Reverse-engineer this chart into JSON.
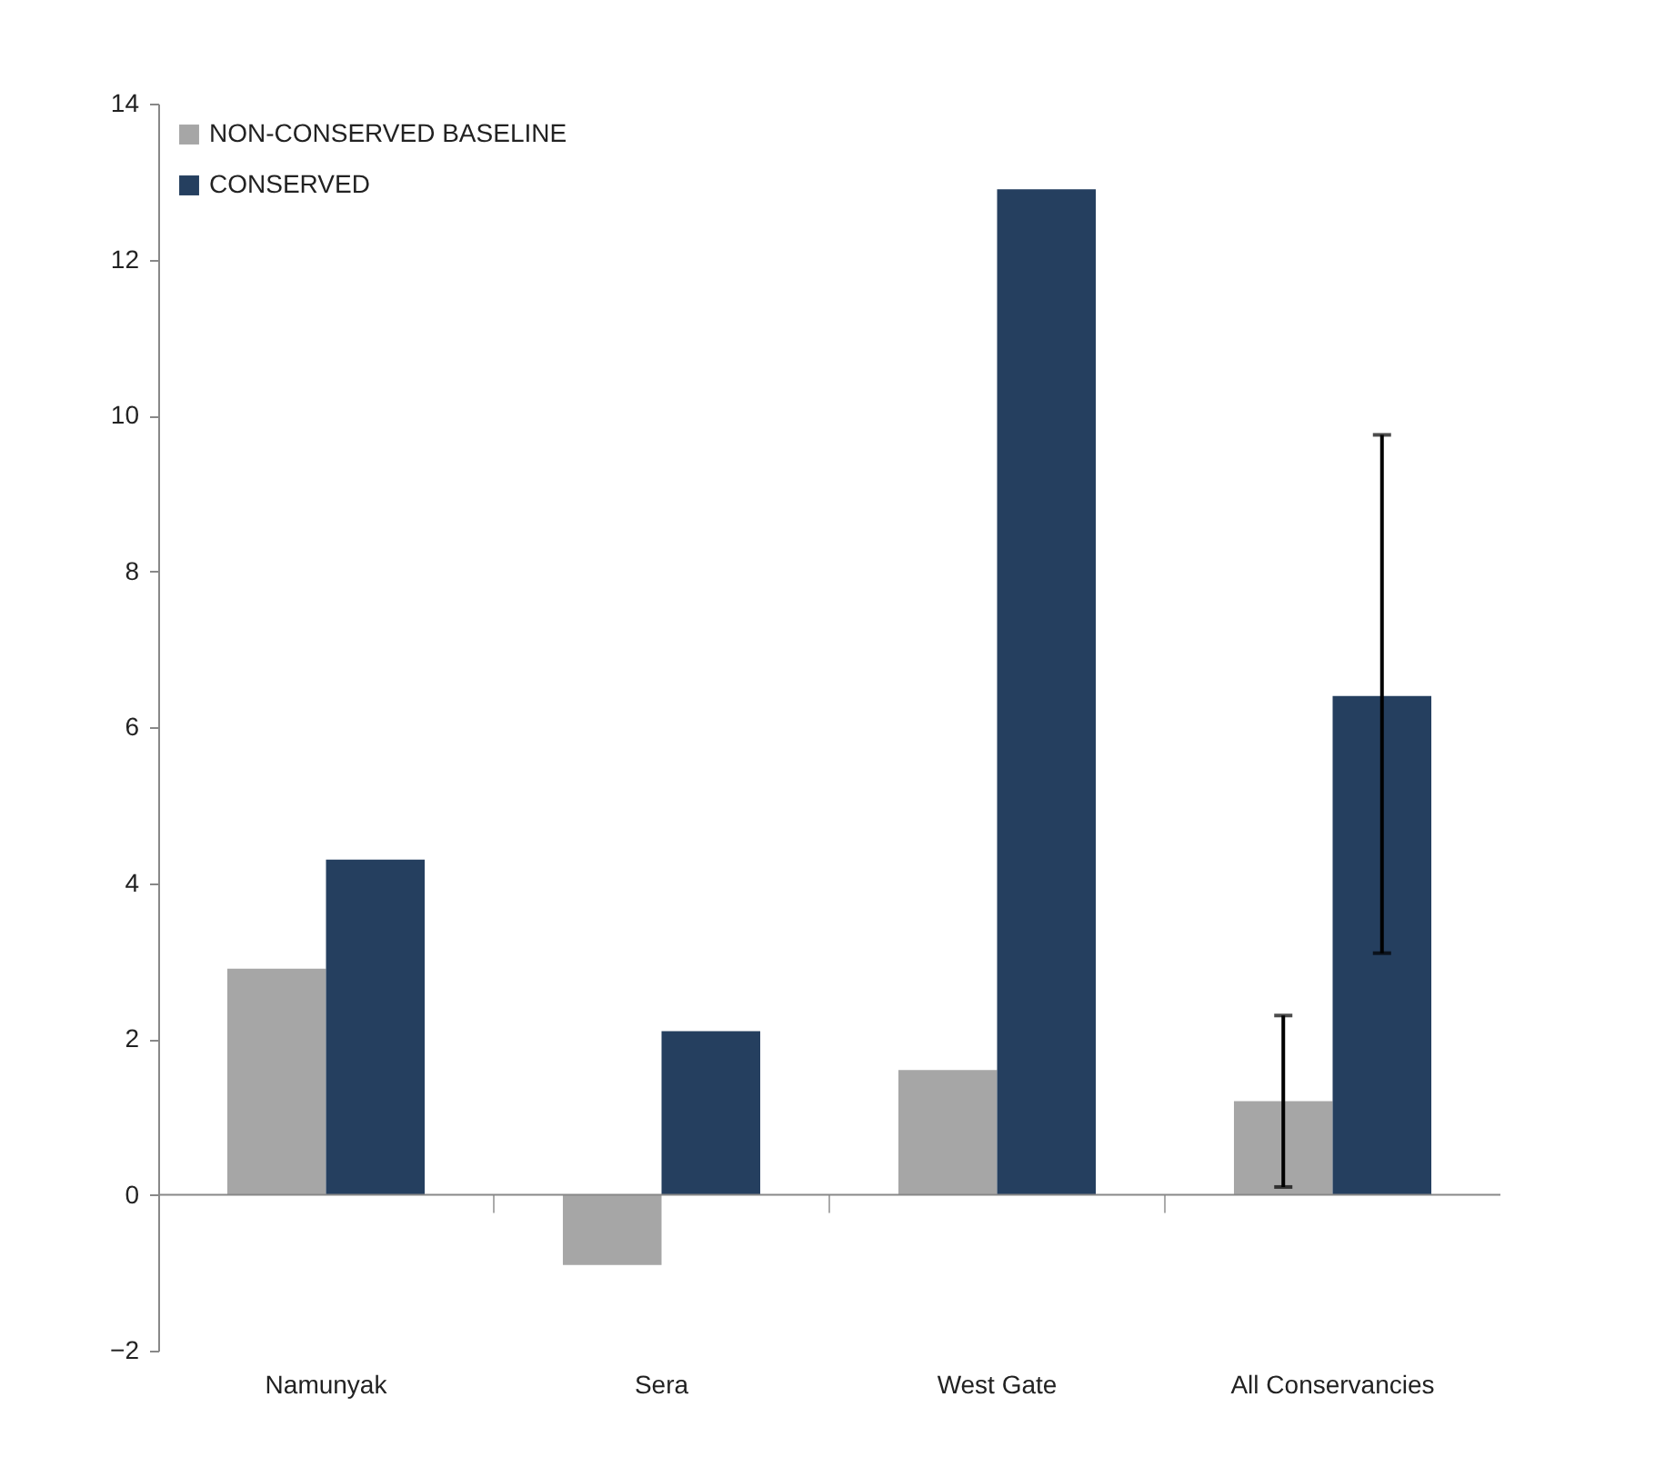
{
  "chart_data": {
    "type": "bar",
    "categories": [
      "Namunyak",
      "Sera",
      "West Gate",
      "All Conservancies"
    ],
    "series": [
      {
        "name": "NON-CONSERVED BASELINE",
        "color": "#a6a6a6",
        "values": [
          2.9,
          -0.9,
          1.6,
          1.2
        ],
        "errors": [
          null,
          null,
          null,
          [
            0.1,
            2.3
          ]
        ]
      },
      {
        "name": "CONSERVED",
        "color": "#253f5f",
        "values": [
          4.3,
          2.1,
          12.9,
          6.4
        ],
        "errors": [
          null,
          null,
          null,
          [
            3.1,
            9.75
          ]
        ]
      }
    ],
    "ylim": [
      -2,
      14
    ],
    "yticks": [
      -2,
      0,
      2,
      4,
      6,
      8,
      10,
      12,
      14
    ],
    "legend": "top left"
  }
}
